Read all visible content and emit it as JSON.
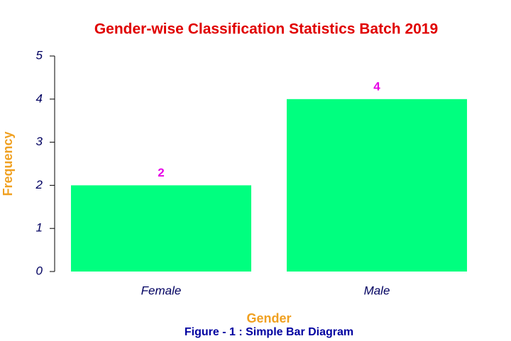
{
  "chart_data": {
    "type": "bar",
    "title": "Gender-wise Classification Statistics Batch 2019",
    "caption": "Figure - 1 : Simple Bar Diagram",
    "x_label": "Gender",
    "y_label": "Frequency",
    "categories": [
      "Female",
      "Male"
    ],
    "values": [
      2,
      4
    ],
    "color": "#00ff7f",
    "ylim": [
      0,
      5
    ],
    "yticks": [
      0,
      1,
      2,
      3,
      4,
      5
    ],
    "grid": false
  }
}
